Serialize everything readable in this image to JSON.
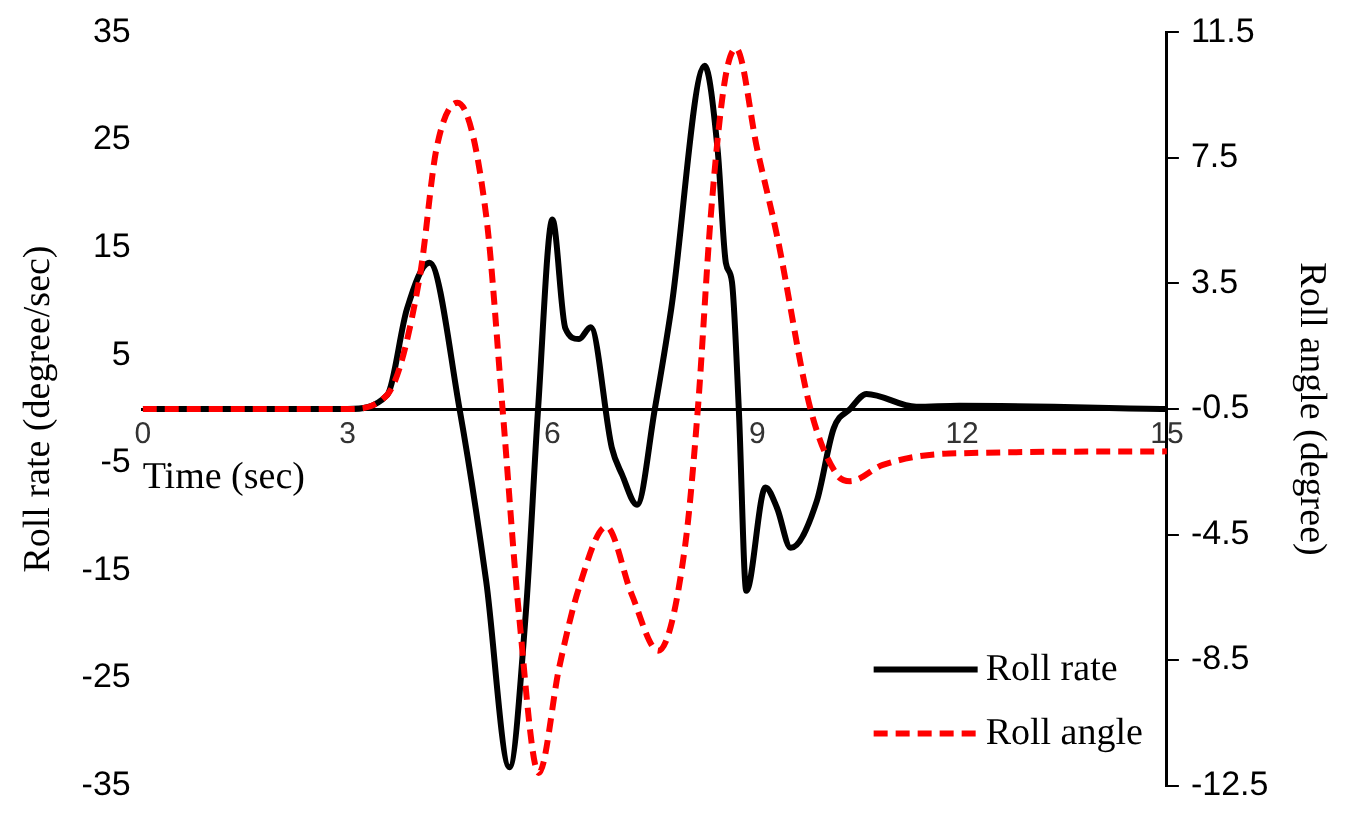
{
  "chart_data": {
    "type": "line",
    "xlabel": "Time (sec)",
    "ylabel": "Roll rate (degree/sec)",
    "y2label": "Roll angle (degree)",
    "xlim": [
      0,
      15
    ],
    "xticks": [
      0,
      3,
      6,
      9,
      12,
      15
    ],
    "ylim": [
      -35,
      35
    ],
    "yticks": [
      -35,
      -25,
      -15,
      -5,
      5,
      15,
      25,
      35
    ],
    "y2lim": [
      -12.5,
      11.5
    ],
    "y2ticks": [
      -12.5,
      -8.5,
      -4.5,
      -0.5,
      3.5,
      7.5,
      11.5
    ],
    "grid": false,
    "legend": "bottom right",
    "marker": "none",
    "series": [
      {
        "name": "Roll rate",
        "color": "#000000",
        "line_style": "solid",
        "x": [
          0,
          3,
          3.58,
          3.87,
          4.2,
          4.64,
          5.03,
          5.37,
          5.61,
          5.79,
          6.0,
          6.19,
          6.39,
          6.56,
          6.87,
          7.02,
          7.24,
          7.5,
          7.74,
          8.23,
          8.42,
          8.54,
          8.63,
          8.73,
          8.84,
          9.12,
          9.29,
          9.49,
          9.87,
          10.12,
          10.36,
          10.6,
          11.33,
          11.96,
          15
        ],
        "values": [
          0,
          0,
          1.3,
          9.3,
          13.6,
          0,
          -16,
          -33.3,
          -19,
          0,
          17.6,
          7.5,
          6.5,
          7.6,
          -3.6,
          -6.1,
          -8.9,
          0,
          9.3,
          31.9,
          24.1,
          13.6,
          11.8,
          0,
          -16.9,
          -7.3,
          -9.2,
          -12.9,
          -8.6,
          -1.8,
          0,
          1.4,
          0.2,
          0.3,
          0
        ]
      },
      {
        "name": "Roll angle",
        "color": "#ff0000",
        "line_style": "dashed",
        "axis": "y2",
        "x": [
          0,
          3,
          3.58,
          4.06,
          4.3,
          4.61,
          5.03,
          5.27,
          5.51,
          5.8,
          6.1,
          6.39,
          6.79,
          7.16,
          7.55,
          7.94,
          8.13,
          8.32,
          8.52,
          8.69,
          9.0,
          9.29,
          9.78,
          10.17,
          10.36,
          10.84,
          11.81,
          15
        ],
        "values": [
          -0.5,
          -0.5,
          -0.05,
          3.75,
          7.77,
          9.26,
          5.66,
          -0.5,
          -7.04,
          -12.1,
          -8.73,
          -6.19,
          -4.25,
          -6.4,
          -8.2,
          -4.92,
          -0.5,
          5.66,
          9.89,
          10.99,
          7.77,
          5.02,
          -0.5,
          -2.6,
          -2.8,
          -2.28,
          -1.92,
          -1.85
        ]
      }
    ]
  }
}
